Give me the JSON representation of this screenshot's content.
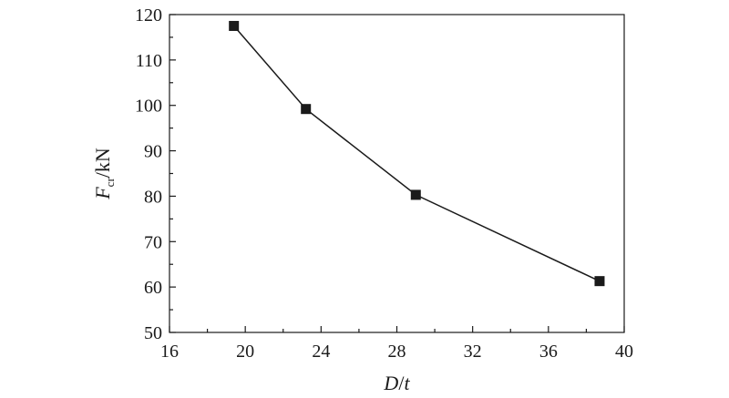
{
  "chart_data": {
    "type": "line",
    "title": "",
    "xlabel": {
      "main": "D",
      "sep": "/",
      "rest": "t"
    },
    "ylabel": {
      "main": "F",
      "sub": "cr",
      "rest": "/kN"
    },
    "xlim": [
      16,
      40
    ],
    "ylim": [
      50,
      120
    ],
    "xticks": [
      16,
      20,
      24,
      28,
      32,
      36,
      40
    ],
    "yticks": [
      50,
      60,
      70,
      80,
      90,
      100,
      110,
      120
    ],
    "x_minor_step": 2,
    "y_minor_step": 5,
    "grid": false,
    "marker": "square",
    "series": [
      {
        "x": [
          19.4,
          23.2,
          29.0,
          38.7
        ],
        "y": [
          117.5,
          99.2,
          80.3,
          61.3
        ]
      }
    ]
  }
}
